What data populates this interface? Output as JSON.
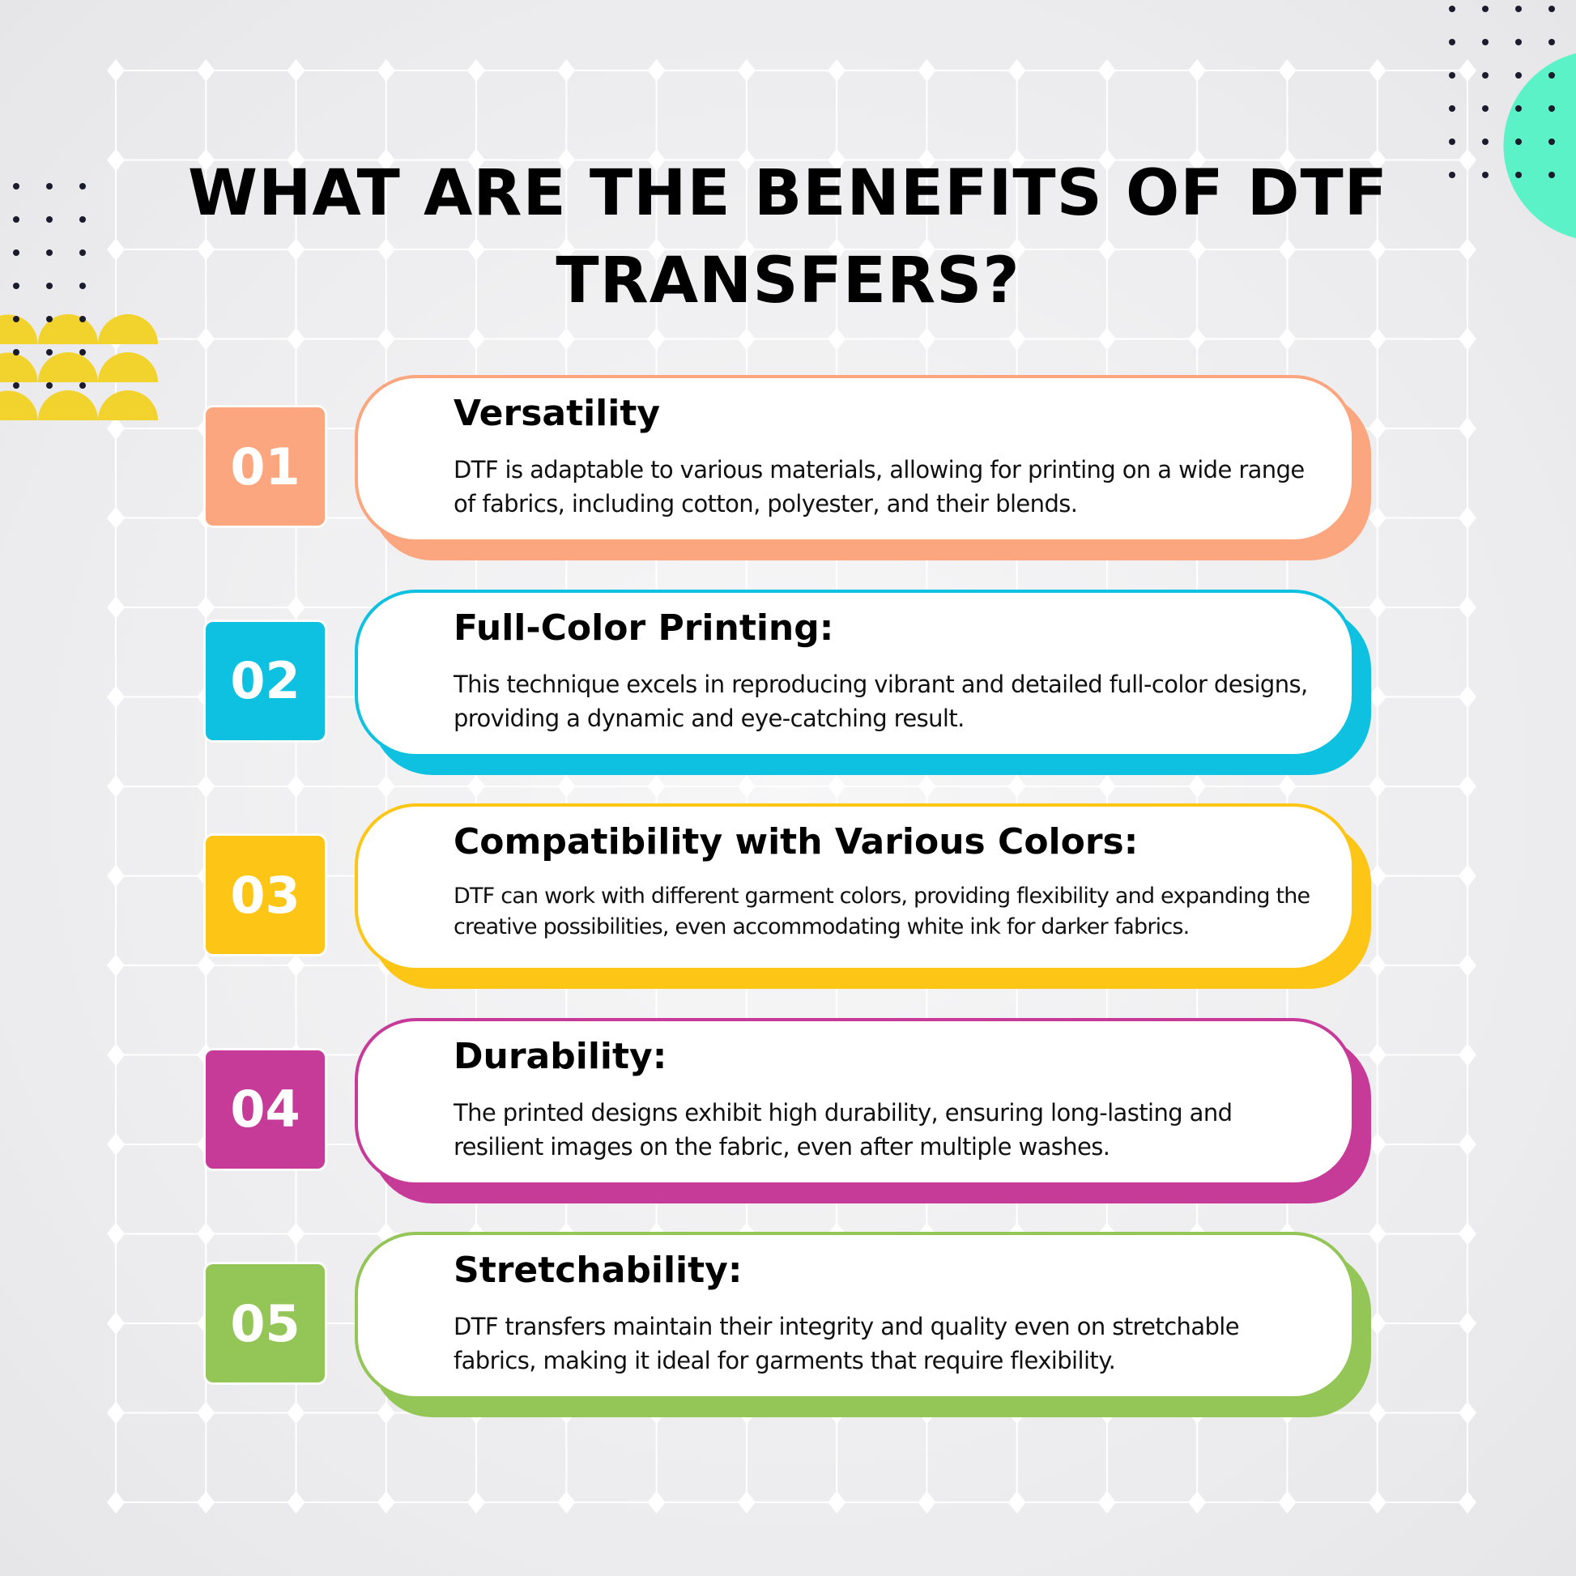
{
  "title": {
    "line1": "WHAT ARE THE BENEFITS OF DTF",
    "line2": "TRANSFERS?"
  },
  "colors": {
    "teal": "#5cf2c8",
    "yellow_deco": "#f2d22c",
    "grid": "#ffffff"
  },
  "benefits": [
    {
      "number": "01",
      "heading": "Versatility",
      "color": "#fba67e",
      "text": "DTF is adaptable to various materials, allowing for printing on a wide range of fabrics, including cotton, polyester, and their blends."
    },
    {
      "number": "02",
      "heading": "Full-Color Printing:",
      "color": "#0fc1e0",
      "text": "This technique excels in reproducing vibrant and detailed full-color designs, providing a dynamic and eye-catching result."
    },
    {
      "number": "03",
      "heading": "Compatibility with Various Colors:",
      "color": "#fdc516",
      "text": "DTF can work with different garment colors, providing flexibility and expanding the creative possibilities, even accommodating white ink for darker fabrics."
    },
    {
      "number": "04",
      "heading": "Durability:",
      "color": "#c63b98",
      "text": "The printed designs exhibit high durability, ensuring long-lasting and resilient images on the fabric, even after multiple washes."
    },
    {
      "number": "05",
      "heading": "Stretchability:",
      "color": "#94c557",
      "text": "DTF transfers maintain their integrity and quality even on stretchable fabrics, making it ideal for garments that require flexibility."
    }
  ]
}
